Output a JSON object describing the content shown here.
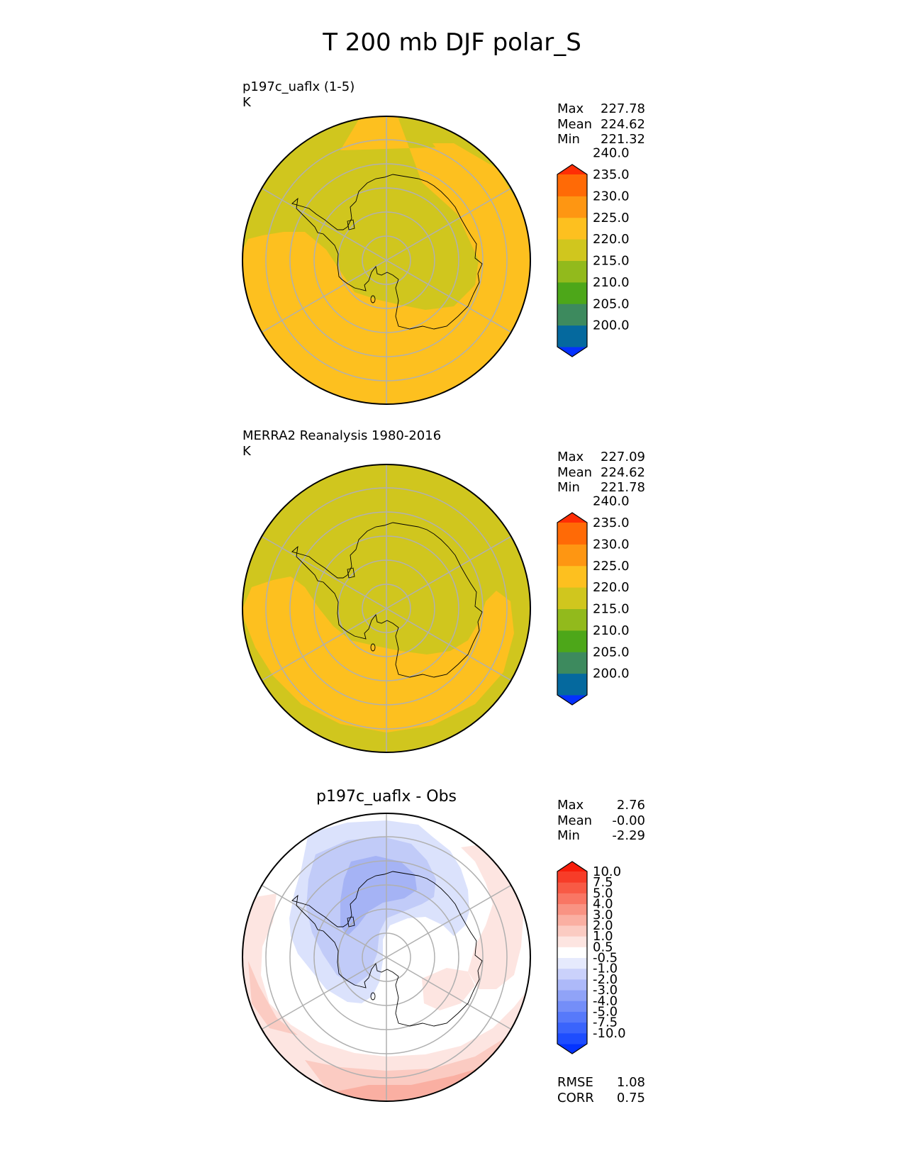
{
  "figure_title": "T 200 mb DJF polar_S",
  "colors": {
    "yellow_green": "#d0c61e",
    "orange_yellow": "#fdc01f",
    "outline": "#000000",
    "grid": "#b0b0b0"
  },
  "panels": [
    {
      "title_line1": "p197c_uaflx (1-5)",
      "title_line2": "K",
      "stats": {
        "max_label": "Max",
        "max": "227.78",
        "mean_label": "Mean",
        "mean": "224.62",
        "min_label": "Min",
        "min": "221.32"
      }
    },
    {
      "title_line1": "MERRA2 Reanalysis 1980-2016",
      "title_line2": "K",
      "stats": {
        "max_label": "Max",
        "max": "227.09",
        "mean_label": "Mean",
        "mean": "224.62",
        "min_label": "Min",
        "min": "221.78"
      }
    },
    {
      "title_center": "p197c_uaflx - Obs",
      "stats": {
        "max_label": "Max",
        "max": "2.76",
        "mean_label": "Mean",
        "mean": "-0.00",
        "min_label": "Min",
        "min": "-2.29"
      },
      "metrics": {
        "rmse_label": "RMSE",
        "rmse": "1.08",
        "corr_label": "CORR",
        "corr": "0.75"
      }
    }
  ],
  "chart_data": [
    {
      "type": "heatmap",
      "title": "p197c_uaflx (1-5)",
      "units": "K",
      "projection": "south polar stereographic",
      "colorbar": {
        "ticks": [
          "240.0",
          "235.0",
          "230.0",
          "225.0",
          "220.0",
          "215.0",
          "210.0",
          "205.0",
          "200.0"
        ],
        "levels": [
          200,
          205,
          210,
          215,
          220,
          225,
          230,
          235,
          240
        ],
        "colors": [
          "#0431ff",
          "#05699e",
          "#3d8a5e",
          "#4da719",
          "#92ba1c",
          "#d0c61e",
          "#fdc01f",
          "#fe9612",
          "#ff6a06",
          "#ff2e05"
        ]
      }
    },
    {
      "type": "heatmap",
      "title": "MERRA2 Reanalysis 1980-2016",
      "units": "K",
      "projection": "south polar stereographic",
      "colorbar": {
        "ticks": [
          "240.0",
          "235.0",
          "230.0",
          "225.0",
          "220.0",
          "215.0",
          "210.0",
          "205.0",
          "200.0"
        ],
        "levels": [
          200,
          205,
          210,
          215,
          220,
          225,
          230,
          235,
          240
        ],
        "colors": [
          "#0431ff",
          "#05699e",
          "#3d8a5e",
          "#4da719",
          "#92ba1c",
          "#d0c61e",
          "#fdc01f",
          "#fe9612",
          "#ff6a06",
          "#ff2e05"
        ]
      }
    },
    {
      "type": "heatmap",
      "title": "p197c_uaflx - Obs",
      "projection": "south polar stereographic",
      "colorbar": {
        "ticks": [
          "10.0",
          "7.5",
          "5.0",
          "4.0",
          "3.0",
          "2.0",
          "1.0",
          "0.5",
          "-0.5",
          "-1.0",
          "-2.0",
          "-3.0",
          "-4.0",
          "-5.0",
          "-7.5",
          "-10.0"
        ],
        "levels": [
          -10,
          -7.5,
          -5,
          -4,
          -3,
          -2,
          -1,
          -0.5,
          0.5,
          1,
          2,
          3,
          4,
          5,
          7.5,
          10
        ],
        "colors": [
          "#0433ff",
          "#1e4dfe",
          "#3a64fc",
          "#5779fa",
          "#748ef8",
          "#90a3f7",
          "#adb9f9",
          "#cad1fb",
          "#e6eafd",
          "#ffffff",
          "#fde5e1",
          "#fbcbc2",
          "#faafa2",
          "#f99383",
          "#f97664",
          "#f85a45",
          "#f73c28",
          "#f71e0b"
        ]
      }
    }
  ]
}
